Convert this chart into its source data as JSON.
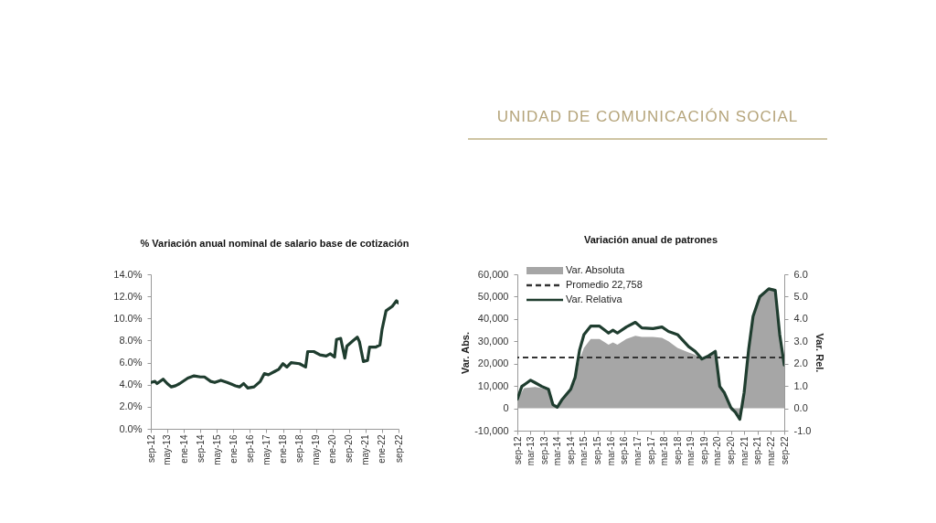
{
  "chart_data": [
    {
      "type": "line",
      "title": "% Variación anual nominal de salario base de cotización",
      "annotations": [
        "UNIDAD DE COMUNICACIÓN SOCIAL"
      ],
      "x": [
        "2012-09",
        "2012-11",
        "2012-12",
        "2013-03",
        "2013-05",
        "2013-07",
        "2013-09",
        "2013-11",
        "2014-03",
        "2014-06",
        "2014-09",
        "2014-11",
        "2015-02",
        "2015-04",
        "2015-07",
        "2015-10",
        "2016-02",
        "2016-04",
        "2016-06",
        "2016-08",
        "2016-11",
        "2017-02",
        "2017-04",
        "2017-06",
        "2017-09",
        "2017-11",
        "2018-01",
        "2018-03",
        "2018-05",
        "2018-09",
        "2018-12",
        "2019-01",
        "2019-04",
        "2019-07",
        "2019-10",
        "2019-12",
        "2020-02",
        "2020-03",
        "2020-05",
        "2020-07",
        "2020-08",
        "2020-11",
        "2021-01",
        "2021-02",
        "2021-04",
        "2021-06",
        "2021-07",
        "2021-10",
        "2021-12",
        "2022-01",
        "2022-03",
        "2022-06",
        "2022-08",
        "2022-09"
      ],
      "series": [
        {
          "color": "#1f3d2f",
          "values": [
            4.2,
            4.3,
            4.1,
            4.5,
            4.1,
            3.8,
            3.9,
            4.1,
            4.6,
            4.8,
            4.7,
            4.7,
            4.3,
            4.2,
            4.4,
            4.2,
            3.9,
            3.8,
            4.1,
            3.7,
            3.8,
            4.3,
            5.0,
            4.9,
            5.2,
            5.4,
            5.9,
            5.6,
            6.0,
            5.9,
            5.6,
            7.0,
            7.0,
            6.7,
            6.6,
            6.8,
            6.5,
            8.1,
            8.2,
            6.4,
            7.5,
            8.0,
            8.3,
            7.9,
            6.1,
            6.2,
            7.4,
            7.4,
            7.6,
            9.0,
            10.7,
            11.1,
            11.6,
            11.4
          ]
        }
      ],
      "xlim": [
        "2012-09",
        "2022-09"
      ],
      "xticks": [
        {
          "value": "2012-09",
          "label": "sep-12"
        },
        {
          "value": "2013-05",
          "label": "may-13"
        },
        {
          "value": "2014-01",
          "label": "ene-14"
        },
        {
          "value": "2014-09",
          "label": "sep-14"
        },
        {
          "value": "2015-05",
          "label": "may-15"
        },
        {
          "value": "2016-01",
          "label": "ene-16"
        },
        {
          "value": "2016-09",
          "label": "sep-16"
        },
        {
          "value": "2017-05",
          "label": "may-17"
        },
        {
          "value": "2018-01",
          "label": "ene-18"
        },
        {
          "value": "2018-09",
          "label": "sep-18"
        },
        {
          "value": "2019-05",
          "label": "may-19"
        },
        {
          "value": "2020-01",
          "label": "ene-20"
        },
        {
          "value": "2020-09",
          "label": "sep-20"
        },
        {
          "value": "2021-05",
          "label": "may-21"
        },
        {
          "value": "2022-01",
          "label": "ene-22"
        },
        {
          "value": "2022-09",
          "label": "sep-22"
        }
      ],
      "ylim": [
        0,
        14
      ],
      "yticks": [
        {
          "value": 0,
          "label": "0.0%"
        },
        {
          "value": 2,
          "label": "2.0%"
        },
        {
          "value": 4,
          "label": "4.0%"
        },
        {
          "value": 6,
          "label": "6.0%"
        },
        {
          "value": 8,
          "label": "8.0%"
        },
        {
          "value": 10,
          "label": "10.0%"
        },
        {
          "value": 12,
          "label": "12.0%"
        },
        {
          "value": 14,
          "label": "14.0%"
        }
      ]
    },
    {
      "type": "line",
      "title": "Variación anual de patrones",
      "ylabel": "Var. Abs.",
      "y2label": "Var. Rel.",
      "legend": "top left",
      "series": [
        {
          "name": "Var. Absoluta",
          "type": "area",
          "color": "#a6a6a6",
          "x": [
            "2012-09",
            "2012-12",
            "2013-05",
            "2013-08",
            "2013-11",
            "2014-01",
            "2014-03",
            "2014-05",
            "2014-09",
            "2014-11",
            "2015-01",
            "2015-03",
            "2015-06",
            "2015-10",
            "2016-02",
            "2016-04",
            "2016-06",
            "2016-10",
            "2017-02",
            "2017-05",
            "2017-10",
            "2018-02",
            "2018-05",
            "2018-09",
            "2019-02",
            "2019-05",
            "2019-08",
            "2019-11",
            "2020-02",
            "2020-04",
            "2020-06",
            "2020-09",
            "2020-11",
            "2021-01",
            "2021-03",
            "2021-05",
            "2021-07",
            "2021-10",
            "2022-02",
            "2022-05",
            "2022-07",
            "2022-09"
          ],
          "values": [
            4000,
            9000,
            9500,
            9000,
            8000,
            1500,
            500,
            3500,
            8000,
            12000,
            22000,
            27000,
            31000,
            31000,
            28500,
            29500,
            28500,
            31000,
            32500,
            32000,
            32000,
            31500,
            30000,
            27000,
            25000,
            24000,
            22000,
            23000,
            25000,
            9500,
            7000,
            -1000,
            -2000,
            -3000,
            7000,
            26000,
            41000,
            50000,
            54000,
            53500,
            33000,
            19000
          ]
        },
        {
          "name": "Var. Relativa",
          "type": "line",
          "axis": "y2",
          "color": "#1f3d2f",
          "x": [
            "2012-09",
            "2012-11",
            "2013-01",
            "2013-03",
            "2013-05",
            "2013-08",
            "2013-11",
            "2014-01",
            "2014-03",
            "2014-05",
            "2014-09",
            "2014-11",
            "2015-01",
            "2015-03",
            "2015-06",
            "2015-10",
            "2016-02",
            "2016-04",
            "2016-06",
            "2016-10",
            "2017-02",
            "2017-05",
            "2017-10",
            "2018-02",
            "2018-05",
            "2018-09",
            "2019-02",
            "2019-05",
            "2019-08",
            "2019-11",
            "2020-02",
            "2020-04",
            "2020-06",
            "2020-09",
            "2020-11",
            "2021-01",
            "2021-03",
            "2021-05",
            "2021-07",
            "2021-10",
            "2022-02",
            "2022-05",
            "2022-07",
            "2022-09"
          ],
          "values": [
            0.41,
            0.98,
            1.12,
            1.26,
            1.15,
            0.98,
            0.85,
            0.16,
            0.05,
            0.37,
            0.85,
            1.39,
            2.62,
            3.3,
            3.68,
            3.68,
            3.37,
            3.5,
            3.37,
            3.64,
            3.85,
            3.6,
            3.57,
            3.64,
            3.44,
            3.3,
            2.76,
            2.55,
            2.21,
            2.35,
            2.55,
            0.98,
            0.71,
            0.03,
            -0.18,
            -0.49,
            0.71,
            2.62,
            4.12,
            5.0,
            5.35,
            5.28,
            3.3,
            1.94
          ]
        }
      ],
      "ref_lines": [
        {
          "axis": "y",
          "value": 22758,
          "label": "Promedio 22,758",
          "color": "#333333",
          "line_style": "dashed"
        }
      ],
      "xlim": [
        "2012-09",
        "2022-09"
      ],
      "xticks": [
        {
          "value": "2012-09",
          "label": "sep-12"
        },
        {
          "value": "2013-03",
          "label": "mar-13"
        },
        {
          "value": "2013-09",
          "label": "sep-13"
        },
        {
          "value": "2014-03",
          "label": "mar-14"
        },
        {
          "value": "2014-09",
          "label": "sep-14"
        },
        {
          "value": "2015-03",
          "label": "mar-15"
        },
        {
          "value": "2015-09",
          "label": "sep-15"
        },
        {
          "value": "2016-03",
          "label": "mar-16"
        },
        {
          "value": "2016-09",
          "label": "sep-16"
        },
        {
          "value": "2017-03",
          "label": "mar-17"
        },
        {
          "value": "2017-09",
          "label": "sep-17"
        },
        {
          "value": "2018-03",
          "label": "mar-18"
        },
        {
          "value": "2018-09",
          "label": "sep-18"
        },
        {
          "value": "2019-03",
          "label": "mar-19"
        },
        {
          "value": "2019-09",
          "label": "sep-19"
        },
        {
          "value": "2020-03",
          "label": "mar-20"
        },
        {
          "value": "2020-09",
          "label": "sep-20"
        },
        {
          "value": "2021-03",
          "label": "mar-21"
        },
        {
          "value": "2021-09",
          "label": "sep-21"
        },
        {
          "value": "2022-03",
          "label": "mar-22"
        },
        {
          "value": "2022-09",
          "label": "sep-22"
        }
      ],
      "ylim": [
        -10000,
        60000
      ],
      "yticks": [
        {
          "value": -10000,
          "label": "-10,000"
        },
        0,
        {
          "value": 10000,
          "label": "10,000"
        },
        {
          "value": 20000,
          "label": "20,000"
        },
        {
          "value": 30000,
          "label": "30,000"
        },
        {
          "value": 40000,
          "label": "40,000"
        },
        {
          "value": 50000,
          "label": "50,000"
        },
        {
          "value": 60000,
          "label": "60,000"
        }
      ],
      "y2lim": [
        -1,
        6
      ],
      "y2ticks": [
        {
          "value": -1,
          "label": "-1.0"
        },
        {
          "value": 0,
          "label": "0.0"
        },
        {
          "value": 1,
          "label": "1.0"
        },
        {
          "value": 2,
          "label": "2.0"
        },
        {
          "value": 3,
          "label": "3.0"
        },
        {
          "value": 4,
          "label": "4.0"
        },
        {
          "value": 5,
          "label": "5.0"
        },
        {
          "value": 6,
          "label": "6.0"
        }
      ]
    }
  ]
}
